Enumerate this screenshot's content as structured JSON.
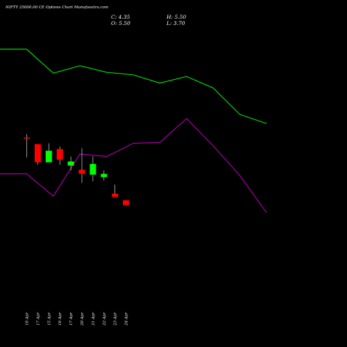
{
  "chart_data": {
    "type": "candlestick",
    "title": "NIFTY 25000.00 CE Options Chart Munafasutra.com",
    "ohlc_readout": {
      "c_label": "C:",
      "c_value": "4.35",
      "h_label": "H:",
      "h_value": "5.50",
      "o_label": "O:",
      "o_value": "5.50",
      "l_label": "L:",
      "l_value": "3.70"
    },
    "categories": [
      "16 Apr",
      "17 Apr",
      "15 Apr",
      "16 Apr",
      "17 Apr",
      "20 Apr",
      "21 Apr",
      "22 Apr",
      "23 Apr",
      "24 Apr"
    ],
    "candles": [
      {
        "open": 38.5,
        "high": 40.5,
        "low": 26.5,
        "close": 38.0
      },
      {
        "open": 34.5,
        "high": 34.5,
        "low": 22.0,
        "close": 23.5
      },
      {
        "open": 23.5,
        "high": 35.0,
        "low": 23.5,
        "close": 30.5
      },
      {
        "open": 31.5,
        "high": 33.0,
        "low": 22.0,
        "close": 25.0
      },
      {
        "open": 21.5,
        "high": 27.0,
        "low": 18.5,
        "close": 24.0
      },
      {
        "open": 19.0,
        "high": 32.0,
        "low": 11.0,
        "close": 16.5
      },
      {
        "open": 16.0,
        "high": 27.0,
        "low": 12.0,
        "close": 22.5
      },
      {
        "open": 14.5,
        "high": 18.5,
        "low": 12.5,
        "close": 16.5
      },
      {
        "open": 4.5,
        "high": 10.0,
        "low": 2.5,
        "close": 2.5
      },
      {
        "open": 0.5,
        "high": 0.5,
        "low": -2.5,
        "close": -2.5
      }
    ],
    "upper_line": [
      92.0,
      92.0,
      77.5,
      82.0,
      78.0,
      76.5,
      71.5,
      75.5,
      68.5,
      52.5,
      47.0
    ],
    "lower_line": [
      16.5,
      16.5,
      3.0,
      28.5,
      27.0,
      35.0,
      35.5,
      50.0,
      33.5,
      15.5,
      -7.0
    ],
    "ylim": [
      -80,
      105
    ],
    "grid": false,
    "legend": "none",
    "colors": {
      "background": "#000000",
      "up": "#00ff00",
      "down": "#ff0000",
      "upper_line": "#00dd00",
      "lower_line": "#aa00aa",
      "wick": "#ffffff",
      "text": "#ffffff"
    }
  }
}
